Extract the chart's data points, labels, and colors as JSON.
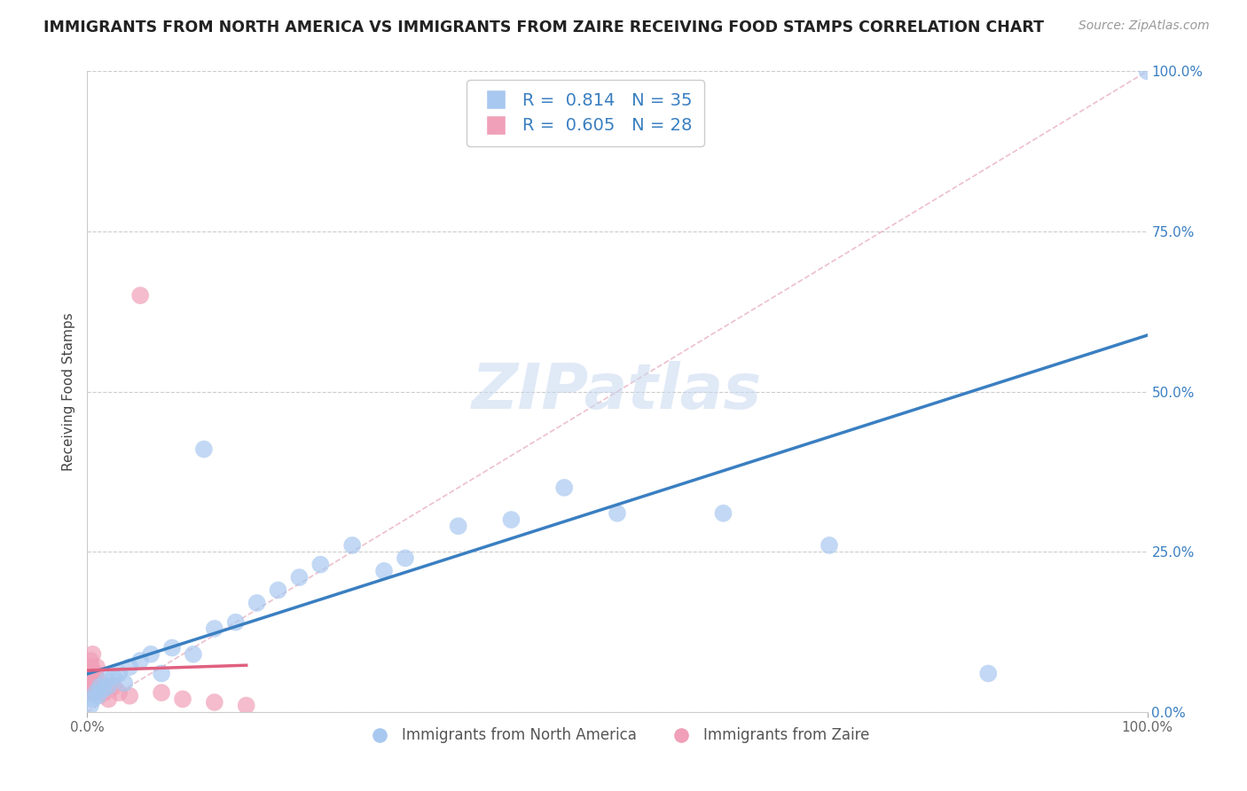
{
  "title": "IMMIGRANTS FROM NORTH AMERICA VS IMMIGRANTS FROM ZAIRE RECEIVING FOOD STAMPS CORRELATION CHART",
  "source": "Source: ZipAtlas.com",
  "ylabel": "Receiving Food Stamps",
  "R_blue": 0.814,
  "N_blue": 35,
  "R_pink": 0.605,
  "N_pink": 28,
  "blue_color": "#a8c8f0",
  "pink_color": "#f0a0b8",
  "blue_line_color": "#3a7fc1",
  "pink_line_color": "#e06080",
  "diag_line_color": "#e8b0c0",
  "legend_label_blue": "Immigrants from North America",
  "legend_label_pink": "Immigrants from Zaire",
  "watermark": "ZIPatlas",
  "watermark_color": "#c8d8f0",
  "blue_scatter_x": [
    0.3,
    0.5,
    0.8,
    1.0,
    1.2,
    1.5,
    1.8,
    2.0,
    2.5,
    3.0,
    3.5,
    4.0,
    5.0,
    6.0,
    7.0,
    8.0,
    10.0,
    11.0,
    12.0,
    14.0,
    16.0,
    18.0,
    20.0,
    22.0,
    25.0,
    28.0,
    30.0,
    35.0,
    40.0,
    45.0,
    50.0,
    60.0,
    70.0,
    85.0,
    100.0
  ],
  "blue_scatter_y": [
    1.0,
    2.0,
    3.0,
    2.5,
    4.0,
    3.5,
    5.0,
    4.0,
    5.5,
    6.0,
    4.5,
    7.0,
    8.0,
    9.0,
    6.0,
    10.0,
    9.0,
    41.0,
    13.0,
    14.0,
    17.0,
    19.0,
    21.0,
    23.0,
    26.0,
    22.0,
    24.0,
    29.0,
    30.0,
    35.0,
    31.0,
    31.0,
    26.0,
    6.0,
    100.0
  ],
  "pink_scatter_x": [
    0.1,
    0.15,
    0.2,
    0.2,
    0.25,
    0.3,
    0.3,
    0.35,
    0.4,
    0.4,
    0.5,
    0.5,
    0.6,
    0.7,
    0.8,
    0.9,
    1.0,
    1.2,
    1.5,
    2.0,
    2.5,
    3.0,
    4.0,
    5.0,
    7.0,
    9.0,
    12.0,
    15.0
  ],
  "pink_scatter_y": [
    4.0,
    5.0,
    3.0,
    7.0,
    6.0,
    4.0,
    8.0,
    5.0,
    7.0,
    3.0,
    6.0,
    9.0,
    5.0,
    4.0,
    6.0,
    7.0,
    5.0,
    4.0,
    3.0,
    2.0,
    4.0,
    3.0,
    2.5,
    65.0,
    3.0,
    2.0,
    1.5,
    1.0
  ],
  "xlim": [
    0,
    100
  ],
  "ylim": [
    0,
    100
  ],
  "yticks": [
    0,
    25,
    50,
    75,
    100
  ],
  "ytick_labels": [
    "0.0%",
    "25.0%",
    "50.0%",
    "75.0%",
    "100.0%"
  ],
  "xtick_labels": [
    "0.0%",
    "100.0%"
  ],
  "grid_color": "#cccccc",
  "background_color": "#ffffff",
  "title_fontsize": 12.5,
  "axis_label_fontsize": 11
}
